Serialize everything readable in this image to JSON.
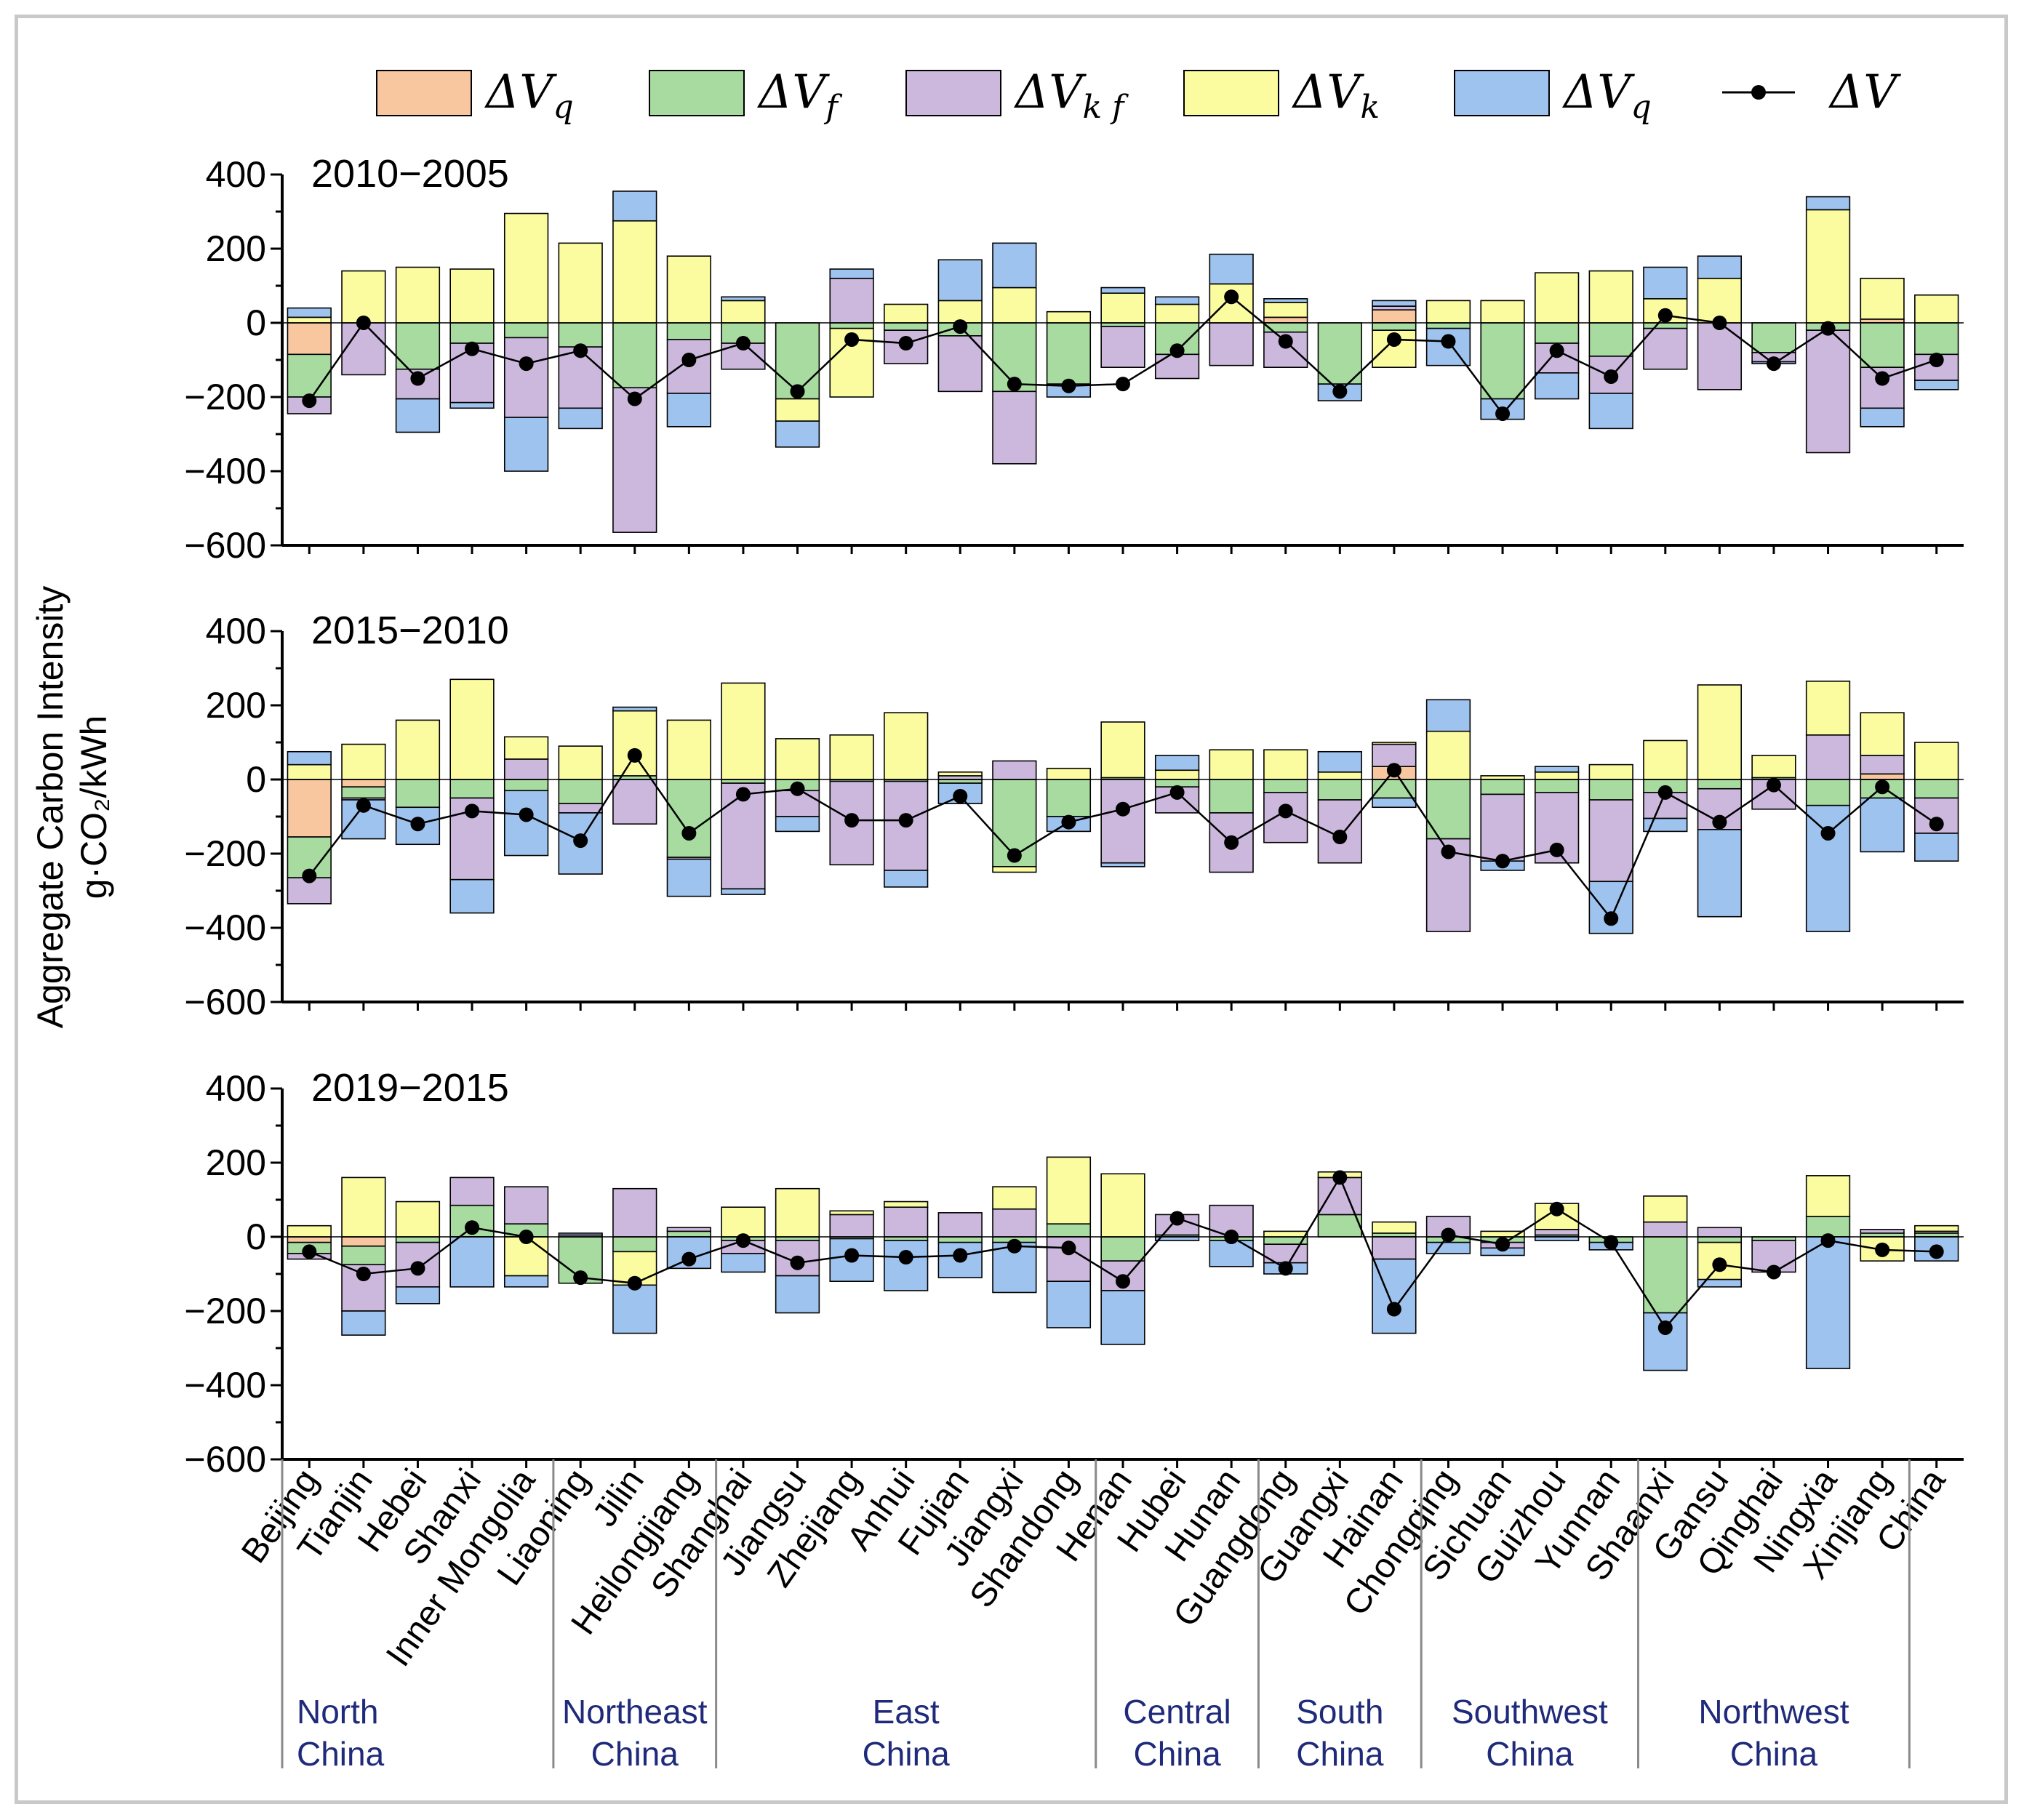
{
  "chart_data": {
    "type": "bar",
    "subtype": "stacked-bar-with-line",
    "ylabel": [
      "Aggregate Carbon Intensity",
      "g·CO₂/kWh"
    ],
    "ylim": [
      -600,
      400
    ],
    "yticks": [
      400,
      200,
      0,
      -200,
      -400,
      -600
    ],
    "ytick_labels": [
      "400",
      "200",
      "0",
      "−200",
      "−400",
      "−600"
    ],
    "legend_position": "top",
    "legend": [
      {
        "key": "q1",
        "base": "ΔV",
        "sub": "q",
        "color": "#f8c7a0"
      },
      {
        "key": "f",
        "base": "ΔV",
        "sub": "f",
        "color": "#a7dba0"
      },
      {
        "key": "kf",
        "base": "ΔV",
        "sub": "k f",
        "color": "#cbb8dc"
      },
      {
        "key": "k",
        "base": "ΔV",
        "sub": "k",
        "color": "#fbfba0"
      },
      {
        "key": "q2",
        "base": "ΔV",
        "sub": "q",
        "color": "#9fc3ef"
      },
      {
        "key": "total",
        "base": "ΔV",
        "sub": "",
        "color": "#000000"
      }
    ],
    "categories": [
      "Beijing",
      "Tianjin",
      "Hebei",
      "Shanxi",
      "Inner Mongolia",
      "Liaoning",
      "Jilin",
      "Heilongjiang",
      "Shanghai",
      "Jiangsu",
      "Zhejiang",
      "Anhui",
      "Fujian",
      "Jiangxi",
      "Shandong",
      "Henan",
      "Hubei",
      "Hunan",
      "Guangdong",
      "Guangxi",
      "Hainan",
      "Chongqing",
      "Sichuan",
      "Guizhou",
      "Yunnan",
      "Shaanxi",
      "Gansu",
      "Qinghai",
      "Ningxia",
      "Xinjiang",
      "China"
    ],
    "regions": [
      {
        "name": [
          "North",
          "China"
        ],
        "start": 0,
        "end": 4
      },
      {
        "name": [
          "Northeast",
          "China"
        ],
        "start": 5,
        "end": 7
      },
      {
        "name": [
          "East",
          "China"
        ],
        "start": 8,
        "end": 14
      },
      {
        "name": [
          "Central",
          "China"
        ],
        "start": 15,
        "end": 17
      },
      {
        "name": [
          "South",
          "China"
        ],
        "start": 18,
        "end": 20
      },
      {
        "name": [
          "Southwest",
          "China"
        ],
        "start": 21,
        "end": 24
      },
      {
        "name": [
          "Northwest",
          "China"
        ],
        "start": 25,
        "end": 29
      }
    ],
    "panels": [
      {
        "title": "2010−2005",
        "components": {
          "q1": [
            -85,
            0,
            0,
            0,
            0,
            0,
            0,
            0,
            0,
            0,
            0,
            0,
            0,
            0,
            0,
            0,
            0,
            0,
            15,
            0,
            35,
            0,
            0,
            0,
            0,
            0,
            0,
            0,
            0,
            10,
            0
          ],
          "f": [
            -115,
            0,
            -125,
            -55,
            -40,
            -65,
            -175,
            -45,
            -55,
            -205,
            -15,
            -20,
            -35,
            -185,
            -165,
            -10,
            -85,
            0,
            -25,
            -165,
            -20,
            -15,
            -205,
            -55,
            -90,
            -15,
            0,
            -80,
            -20,
            -120,
            -85
          ],
          "kf": [
            -45,
            -140,
            -80,
            -160,
            -215,
            -165,
            -390,
            -145,
            -70,
            0,
            120,
            -90,
            -150,
            -195,
            0,
            -110,
            -65,
            -115,
            -95,
            0,
            10,
            0,
            0,
            -80,
            -100,
            -110,
            -180,
            -25,
            -330,
            -110,
            -70
          ],
          "k": [
            15,
            140,
            150,
            145,
            295,
            215,
            275,
            180,
            60,
            -60,
            -185,
            50,
            60,
            95,
            30,
            80,
            50,
            105,
            40,
            0,
            -100,
            60,
            60,
            135,
            140,
            65,
            120,
            0,
            305,
            110,
            75
          ],
          "q2": [
            25,
            0,
            -90,
            -15,
            -145,
            -55,
            80,
            -90,
            10,
            -70,
            25,
            0,
            110,
            120,
            -35,
            15,
            20,
            80,
            10,
            -45,
            15,
            -100,
            -55,
            -70,
            -95,
            85,
            60,
            -5,
            35,
            -50,
            -25
          ]
        },
        "total": [
          -210,
          0,
          -150,
          -70,
          -110,
          -75,
          -205,
          -100,
          -55,
          -185,
          -45,
          -55,
          -10,
          -165,
          -170,
          -165,
          -75,
          70,
          -50,
          -185,
          -45,
          -50,
          -245,
          -75,
          -145,
          20,
          0,
          -110,
          -15,
          -150,
          -100
        ]
      },
      {
        "title": "2015−2010",
        "components": {
          "q1": [
            -155,
            -20,
            0,
            0,
            0,
            0,
            0,
            0,
            0,
            0,
            0,
            0,
            0,
            0,
            0,
            0,
            0,
            0,
            0,
            0,
            35,
            0,
            0,
            0,
            0,
            0,
            0,
            0,
            0,
            15,
            0
          ],
          "f": [
            -110,
            -30,
            -75,
            -50,
            -30,
            -65,
            10,
            -210,
            -10,
            -30,
            -5,
            -5,
            -10,
            -235,
            -100,
            5,
            -20,
            -90,
            -35,
            -55,
            -50,
            -160,
            -40,
            -35,
            -55,
            -35,
            -25,
            5,
            -70,
            -50,
            -50
          ],
          "kf": [
            -70,
            -5,
            0,
            -220,
            55,
            -25,
            -120,
            -5,
            -285,
            -70,
            -225,
            -240,
            10,
            50,
            0,
            -225,
            -70,
            -160,
            -135,
            -170,
            60,
            -250,
            -180,
            -190,
            -220,
            -70,
            -110,
            -80,
            120,
            50,
            -95
          ],
          "k": [
            40,
            95,
            160,
            270,
            60,
            90,
            175,
            160,
            260,
            110,
            120,
            180,
            10,
            -15,
            30,
            150,
            25,
            80,
            80,
            20,
            5,
            130,
            10,
            20,
            40,
            105,
            255,
            60,
            145,
            115,
            100
          ],
          "q2": [
            35,
            -105,
            -100,
            -90,
            -175,
            -165,
            10,
            -100,
            -15,
            -40,
            0,
            -45,
            -55,
            0,
            -40,
            -10,
            40,
            0,
            0,
            55,
            -25,
            85,
            -25,
            15,
            -140,
            -35,
            -235,
            0,
            -340,
            -145,
            -75
          ]
        },
        "total": [
          -260,
          -70,
          -120,
          -85,
          -95,
          -165,
          65,
          -145,
          -40,
          -25,
          -110,
          -110,
          -45,
          -205,
          -115,
          -80,
          -35,
          -170,
          -85,
          -155,
          25,
          -195,
          -220,
          -190,
          -375,
          -35,
          -115,
          -15,
          -145,
          -20,
          -120
        ]
      },
      {
        "title": "2019−2015",
        "components": {
          "q1": [
            -15,
            -25,
            0,
            0,
            0,
            0,
            0,
            0,
            0,
            0,
            0,
            0,
            0,
            0,
            0,
            0,
            0,
            0,
            0,
            0,
            0,
            0,
            0,
            0,
            0,
            0,
            0,
            0,
            0,
            0,
            0
          ],
          "f": [
            -30,
            -50,
            -15,
            85,
            35,
            -125,
            -40,
            15,
            -10,
            -10,
            -5,
            -10,
            -15,
            -15,
            35,
            -65,
            5,
            -10,
            -20,
            60,
            10,
            -15,
            -15,
            5,
            -15,
            -205,
            -15,
            -10,
            55,
            10,
            10
          ],
          "kf": [
            -15,
            -125,
            -120,
            75,
            100,
            5,
            130,
            10,
            -35,
            -95,
            60,
            80,
            65,
            75,
            -120,
            -80,
            55,
            85,
            -50,
            100,
            -60,
            55,
            -15,
            15,
            0,
            40,
            25,
            -85,
            0,
            10,
            5
          ],
          "k": [
            30,
            160,
            95,
            0,
            -105,
            0,
            -90,
            0,
            80,
            130,
            10,
            15,
            0,
            60,
            180,
            170,
            0,
            0,
            15,
            15,
            30,
            0,
            15,
            70,
            0,
            70,
            -100,
            0,
            110,
            -65,
            15
          ],
          "q2": [
            0,
            -65,
            -45,
            -135,
            -30,
            5,
            -130,
            -85,
            -50,
            -100,
            -115,
            -135,
            -95,
            -135,
            -125,
            -145,
            -10,
            -70,
            -30,
            0,
            -200,
            -30,
            -20,
            -10,
            -20,
            -155,
            -20,
            0,
            -355,
            0,
            -65
          ]
        },
        "total": [
          -40,
          -100,
          -85,
          25,
          0,
          -110,
          -125,
          -60,
          -10,
          -70,
          -50,
          -55,
          -50,
          -25,
          -30,
          -120,
          50,
          0,
          -85,
          160,
          -195,
          5,
          -20,
          75,
          -15,
          -245,
          -75,
          -95,
          -10,
          -35,
          -40
        ]
      }
    ]
  }
}
